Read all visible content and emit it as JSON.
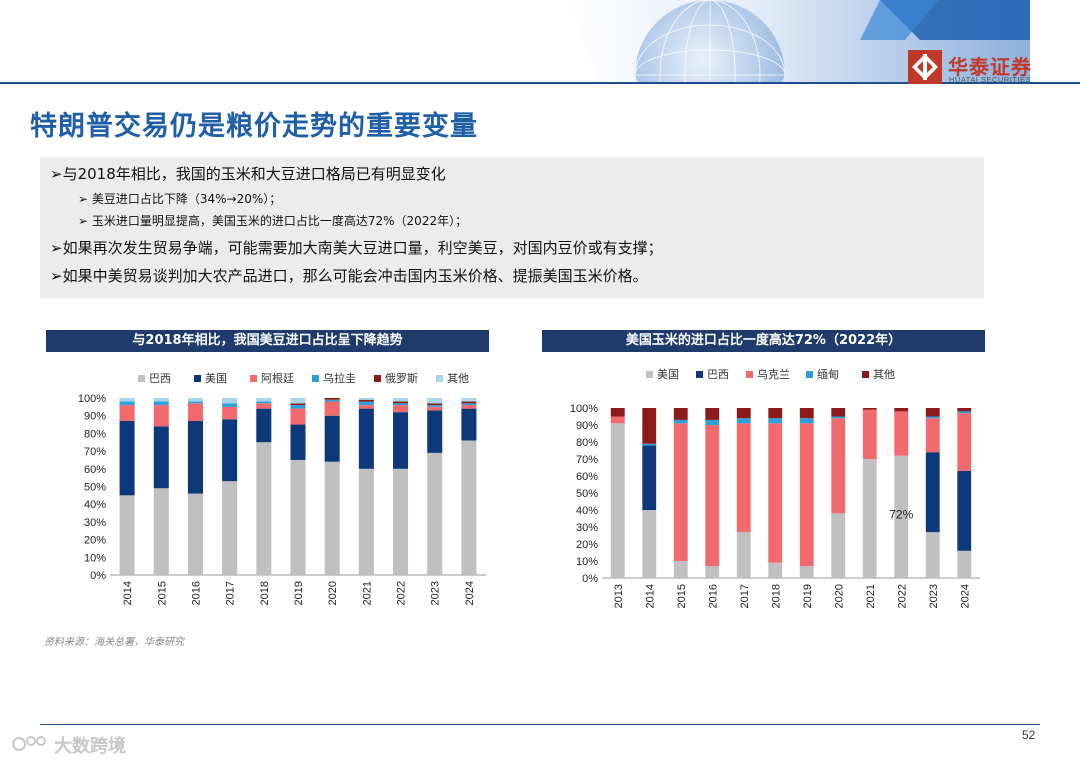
{
  "brand": {
    "name_cn": "华泰证券",
    "name_en": "HUATAI SECURITIES"
  },
  "title": "特朗普交易仍是粮价走势的重要变量",
  "bullets": [
    "与2018年相比，我国的玉米和大豆进口格局已有明显变化",
    "美豆进口占比下降（34%→20%）；",
    "玉米进口量明显提高，美国玉米的进口占比一度高达72%（2022年）；",
    "如果再次发生贸易争端，可能需要加大南美大豆进口量，利空美豆，对国内豆价或有支撑；",
    "如果中美贸易谈判加大农产品进口，那么可能会冲击国内玉米价格、提振美国玉米价格。"
  ],
  "source": "资料来源：海关总署，华泰研究",
  "page_number": "52",
  "watermark": "大数跨境",
  "colors": {
    "gray": "#c0c0c0",
    "navy": "#0d3879",
    "red": "#f26a6e",
    "blue": "#2e9fd8",
    "darkred": "#8b1a1a",
    "light": "#a8d4ec"
  },
  "chart_data": [
    {
      "type": "bar",
      "stacked": true,
      "title": "与2018年相比，我国美豆进口占比呈下降趋势",
      "categories": [
        "2014",
        "2015",
        "2016",
        "2017",
        "2018",
        "2019",
        "2020",
        "2021",
        "2022",
        "2023",
        "2024"
      ],
      "series": [
        {
          "name": "巴西",
          "color": "#c0c0c0",
          "values": [
            45,
            49,
            46,
            53,
            75,
            65,
            64,
            60,
            60,
            69,
            76
          ]
        },
        {
          "name": "美国",
          "color": "#0d3879",
          "values": [
            42,
            35,
            41,
            35,
            19,
            20,
            26,
            34,
            32,
            24,
            18
          ]
        },
        {
          "name": "阿根廷",
          "color": "#f26a6e",
          "values": [
            9,
            12,
            10,
            7,
            3,
            9,
            8,
            2,
            4,
            2,
            2
          ]
        },
        {
          "name": "乌拉圭",
          "color": "#2e9fd8",
          "values": [
            2,
            2,
            1,
            2,
            1,
            2,
            1,
            2,
            1,
            1,
            1
          ]
        },
        {
          "name": "俄罗斯",
          "color": "#8b1a1a",
          "values": [
            0,
            0,
            0,
            0,
            0,
            1,
            1,
            1,
            1,
            1,
            1
          ]
        },
        {
          "name": "其他",
          "color": "#a8d4ec",
          "values": [
            2,
            2,
            2,
            3,
            2,
            3,
            0,
            1,
            2,
            3,
            2
          ]
        }
      ],
      "ylim": [
        0,
        100
      ],
      "yticks": [
        "0%",
        "10%",
        "20%",
        "30%",
        "40%",
        "50%",
        "60%",
        "70%",
        "80%",
        "90%",
        "100%"
      ],
      "legend": "top"
    },
    {
      "type": "bar",
      "stacked": true,
      "title": "美国玉米的进口占比一度高达72%（2022年）",
      "categories": [
        "2013",
        "2014",
        "2015",
        "2016",
        "2017",
        "2018",
        "2019",
        "2020",
        "2021",
        "2022",
        "2023",
        "2024"
      ],
      "series": [
        {
          "name": "美国",
          "color": "#c0c0c0",
          "values": [
            91,
            40,
            10,
            7,
            27,
            9,
            7,
            38,
            70,
            72,
            27,
            16
          ]
        },
        {
          "name": "巴西",
          "color": "#0d3879",
          "values": [
            0,
            38,
            0,
            0,
            0,
            0,
            0,
            0,
            0,
            0,
            47,
            47
          ]
        },
        {
          "name": "乌克兰",
          "color": "#f26a6e",
          "values": [
            4,
            0,
            81,
            83,
            64,
            82,
            84,
            56,
            29,
            26,
            20,
            34
          ]
        },
        {
          "name": "缅甸",
          "color": "#2e9fd8",
          "values": [
            0,
            1,
            2,
            3,
            3,
            3,
            3,
            1,
            0,
            0,
            1,
            1
          ]
        },
        {
          "name": "其他",
          "color": "#8b1a1a",
          "values": [
            5,
            21,
            7,
            7,
            6,
            6,
            6,
            5,
            1,
            2,
            5,
            2
          ]
        }
      ],
      "ylim": [
        0,
        100
      ],
      "yticks": [
        "0%",
        "10%",
        "20%",
        "30%",
        "40%",
        "50%",
        "60%",
        "70%",
        "80%",
        "90%",
        "100%"
      ],
      "annotation": "72%",
      "legend": "top"
    }
  ]
}
